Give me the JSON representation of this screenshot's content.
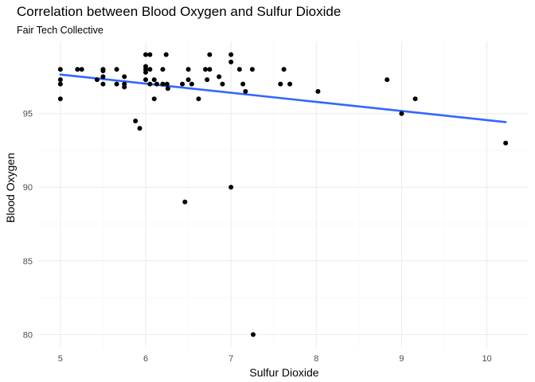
{
  "chart_data": {
    "type": "scatter",
    "title": "Correlation between Blood Oxygen and Sulfur Dioxide",
    "subtitle": "Fair Tech Collective",
    "xlabel": "Sulfur Dioxide",
    "ylabel": "Blood Oxygen",
    "xlim": [
      4.74,
      10.48
    ],
    "ylim": [
      79.1,
      99.9
    ],
    "x_ticks": [
      5,
      6,
      7,
      8,
      9,
      10
    ],
    "y_ticks": [
      80,
      85,
      90,
      95
    ],
    "grid": true,
    "legend": "none",
    "point_color": "#000000",
    "trend_color": "#3366ff",
    "trend_line": {
      "x": [
        5,
        10.22
      ],
      "y": [
        97.65,
        94.42
      ]
    },
    "points": [
      {
        "x": 5.0,
        "y": 98.0
      },
      {
        "x": 5.0,
        "y": 97.3
      },
      {
        "x": 5.0,
        "y": 97.0
      },
      {
        "x": 5.0,
        "y": 96.0
      },
      {
        "x": 5.2,
        "y": 98.0
      },
      {
        "x": 5.25,
        "y": 98.0
      },
      {
        "x": 5.43,
        "y": 97.3
      },
      {
        "x": 5.5,
        "y": 98.0
      },
      {
        "x": 5.5,
        "y": 97.9
      },
      {
        "x": 5.5,
        "y": 97.5
      },
      {
        "x": 5.5,
        "y": 97.0
      },
      {
        "x": 5.66,
        "y": 98.0
      },
      {
        "x": 5.66,
        "y": 97.0
      },
      {
        "x": 5.75,
        "y": 97.5
      },
      {
        "x": 5.75,
        "y": 97.0
      },
      {
        "x": 5.75,
        "y": 96.8
      },
      {
        "x": 5.88,
        "y": 94.5
      },
      {
        "x": 5.93,
        "y": 94.0
      },
      {
        "x": 6.0,
        "y": 99.0
      },
      {
        "x": 6.0,
        "y": 98.2
      },
      {
        "x": 6.0,
        "y": 98.0
      },
      {
        "x": 6.0,
        "y": 97.8
      },
      {
        "x": 6.0,
        "y": 97.3
      },
      {
        "x": 6.05,
        "y": 99.0
      },
      {
        "x": 6.05,
        "y": 98.0
      },
      {
        "x": 6.05,
        "y": 97.0
      },
      {
        "x": 6.1,
        "y": 97.3
      },
      {
        "x": 6.1,
        "y": 96.0
      },
      {
        "x": 6.13,
        "y": 97.0
      },
      {
        "x": 6.2,
        "y": 98.0
      },
      {
        "x": 6.2,
        "y": 97.0
      },
      {
        "x": 6.24,
        "y": 99.0
      },
      {
        "x": 6.25,
        "y": 97.0
      },
      {
        "x": 6.26,
        "y": 96.7
      },
      {
        "x": 6.43,
        "y": 97.0
      },
      {
        "x": 6.46,
        "y": 89.0
      },
      {
        "x": 6.5,
        "y": 98.0
      },
      {
        "x": 6.5,
        "y": 97.3
      },
      {
        "x": 6.54,
        "y": 97.0
      },
      {
        "x": 6.62,
        "y": 96.0
      },
      {
        "x": 6.7,
        "y": 98.0
      },
      {
        "x": 6.72,
        "y": 97.3
      },
      {
        "x": 6.75,
        "y": 99.0
      },
      {
        "x": 6.75,
        "y": 98.0
      },
      {
        "x": 6.86,
        "y": 97.5
      },
      {
        "x": 6.9,
        "y": 97.0
      },
      {
        "x": 7.0,
        "y": 99.0
      },
      {
        "x": 7.0,
        "y": 98.5
      },
      {
        "x": 7.0,
        "y": 90.0
      },
      {
        "x": 7.1,
        "y": 98.0
      },
      {
        "x": 7.14,
        "y": 97.0
      },
      {
        "x": 7.17,
        "y": 96.5
      },
      {
        "x": 7.25,
        "y": 98.0
      },
      {
        "x": 7.26,
        "y": 80.0
      },
      {
        "x": 7.58,
        "y": 97.0
      },
      {
        "x": 7.62,
        "y": 98.0
      },
      {
        "x": 7.69,
        "y": 97.0
      },
      {
        "x": 8.02,
        "y": 96.5
      },
      {
        "x": 8.83,
        "y": 97.3
      },
      {
        "x": 9.0,
        "y": 95.0
      },
      {
        "x": 9.16,
        "y": 96.0
      },
      {
        "x": 10.22,
        "y": 93.0
      }
    ]
  }
}
